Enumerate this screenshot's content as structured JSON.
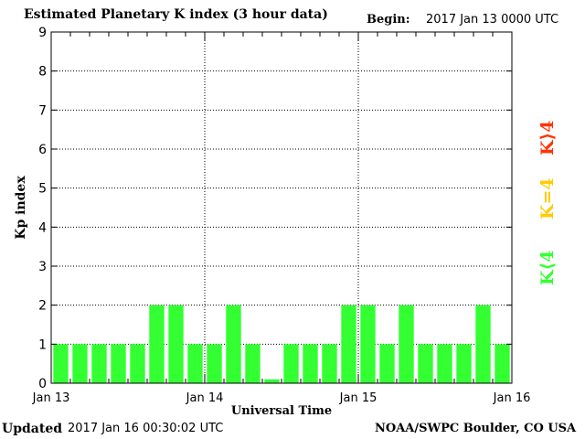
{
  "header": {
    "title": "Estimated Planetary K index (3 hour data)",
    "begin_label": "Begin:",
    "begin_value": "2017 Jan 13 0000 UTC"
  },
  "footer": {
    "updated_label": "Updated",
    "updated_value": "2017 Jan 16 00:30:02 UTC",
    "credit": "NOAA/SWPC Boulder, CO USA"
  },
  "legend": {
    "high": "K⟩4",
    "mid": "K=4",
    "low": "K⟨4"
  },
  "colors": {
    "low": "#33ff33",
    "mid": "#ffcc00",
    "high": "#ff3300",
    "grid": "#000000"
  },
  "chart_data": {
    "type": "bar",
    "title": "Estimated Planetary K index (3 hour data)",
    "xlabel": "Universal Time",
    "ylabel": "Kp index",
    "ylim": [
      0,
      9
    ],
    "yticks": [
      "0",
      "1",
      "2",
      "3",
      "4",
      "5",
      "6",
      "7",
      "8",
      "9"
    ],
    "xtick_labels": [
      "Jan 13",
      "Jan 14",
      "Jan 15",
      "Jan 16"
    ],
    "grid": true,
    "categories": [
      "Jan 13 00",
      "Jan 13 03",
      "Jan 13 06",
      "Jan 13 09",
      "Jan 13 12",
      "Jan 13 15",
      "Jan 13 18",
      "Jan 13 21",
      "Jan 14 00",
      "Jan 14 03",
      "Jan 14 06",
      "Jan 14 09",
      "Jan 14 12",
      "Jan 14 15",
      "Jan 14 18",
      "Jan 14 21",
      "Jan 15 00",
      "Jan 15 03",
      "Jan 15 06",
      "Jan 15 09",
      "Jan 15 12",
      "Jan 15 15",
      "Jan 15 18",
      "Jan 15 21"
    ],
    "values": [
      1,
      1,
      1,
      1,
      1,
      2,
      2,
      1,
      1,
      2,
      1,
      0.1,
      1,
      1,
      1,
      2,
      2,
      1,
      2,
      1,
      1,
      1,
      2,
      1
    ]
  }
}
